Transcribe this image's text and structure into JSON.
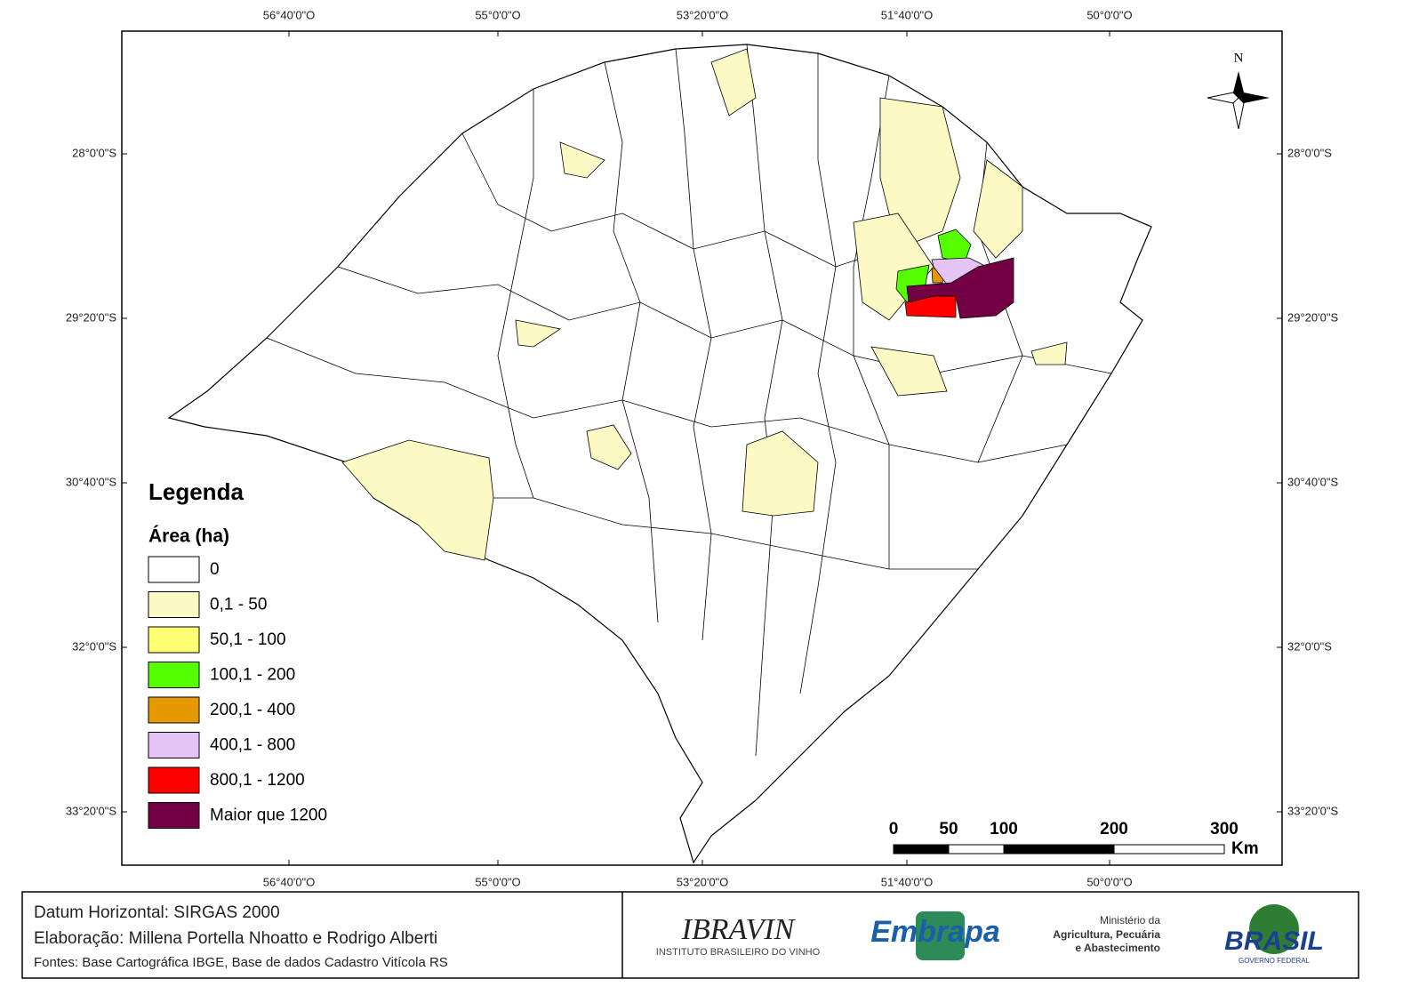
{
  "map": {
    "top_longitudes": [
      "56°40'0\"O",
      "55°0'0\"O",
      "53°20'0\"O",
      "51°40'0\"O",
      "50°0'0\"O"
    ],
    "bottom_longitudes": [
      "56°40'0\"O",
      "55°0'0\"O",
      "53°20'0\"O",
      "51°40'0\"O",
      "50°0'0\"O"
    ],
    "left_latitudes": [
      "28°0'0\"S",
      "29°20'0\"S",
      "30°40'0\"S",
      "32°0'0\"S",
      "33°20'0\"S"
    ],
    "right_latitudes": [
      "28°0'0\"S",
      "29°20'0\"S",
      "30°40'0\"S",
      "32°0'0\"S",
      "33°20'0\"S"
    ],
    "north": "N",
    "legend": {
      "title": "Legenda",
      "subtitle": "Área (ha)",
      "items": [
        {
          "label": "0",
          "color": "#ffffff"
        },
        {
          "label": "0,1 - 50",
          "color": "#fdf9c4"
        },
        {
          "label": "50,1 - 100",
          "color": "#ffff73"
        },
        {
          "label": "100,1 - 200",
          "color": "#55ff00"
        },
        {
          "label": "200,1 - 400",
          "color": "#e69800"
        },
        {
          "label": "400,1 - 800",
          "color": "#e6c3f5"
        },
        {
          "label": "800,1 - 1200",
          "color": "#ff0000"
        },
        {
          "label": "Maior que 1200",
          "color": "#730045"
        }
      ]
    },
    "scale_bar": {
      "ticks": [
        0,
        50,
        100,
        200,
        300
      ],
      "unit": "Km"
    }
  },
  "footer": {
    "lines": [
      "Datum Horizontal: SIRGAS 2000",
      "Elaboração: Millena Portella Nhoatto e Rodrigo Alberti",
      "Fontes: Base Cartográfica IBGE, Base de dados Cadastro Vitícola RS"
    ],
    "logos": {
      "ibravin": "IBRAVIN",
      "ibravin_sub": "INSTITUTO BRASILEIRO DO VINHO",
      "embrapa": "Embrapa",
      "ministry": [
        "Ministério da",
        "Agricultura, Pecuária",
        "e Abastecimento"
      ],
      "brasil": "BRASIL",
      "brasil_sub": "GOVERNO FEDERAL"
    }
  }
}
